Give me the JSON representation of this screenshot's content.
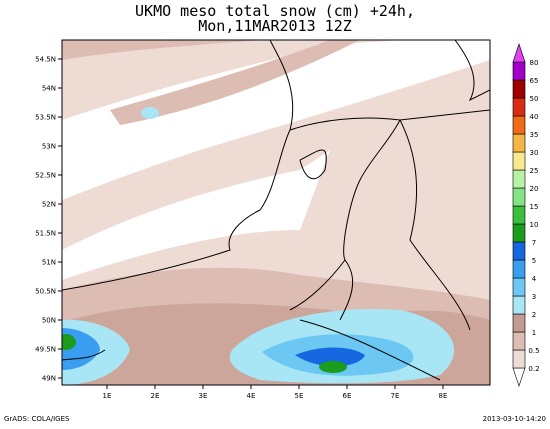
{
  "title": [
    "UKMO meso total snow (cm) +24h,",
    "Mon,11MAR2013 12Z"
  ],
  "map": {
    "x_ticks": [
      {
        "value": 1,
        "label": "1E"
      },
      {
        "value": 2,
        "label": "2E"
      },
      {
        "value": 3,
        "label": "3E"
      },
      {
        "value": 4,
        "label": "4E"
      },
      {
        "value": 5,
        "label": "5E"
      },
      {
        "value": 6,
        "label": "6E"
      },
      {
        "value": 7,
        "label": "7E"
      },
      {
        "value": 8,
        "label": "8E"
      }
    ],
    "y_ticks": [
      {
        "value": 49,
        "label": "49N"
      },
      {
        "value": 49.5,
        "label": "49.5N"
      },
      {
        "value": 50,
        "label": "50N"
      },
      {
        "value": 50.5,
        "label": "50.5N"
      },
      {
        "value": 51,
        "label": "51N"
      },
      {
        "value": 51.5,
        "label": "51.5N"
      },
      {
        "value": 52,
        "label": "52N"
      },
      {
        "value": 52.5,
        "label": "52.5N"
      },
      {
        "value": 53,
        "label": "53N"
      },
      {
        "value": 53.5,
        "label": "53.5N"
      },
      {
        "value": 54,
        "label": "54N"
      },
      {
        "value": 54.5,
        "label": "54.5N"
      }
    ]
  },
  "colorbar": {
    "levels": [
      "0.2",
      "0.5",
      "1",
      "2",
      "3",
      "4",
      "5",
      "7",
      "10",
      "15",
      "20",
      "25",
      "30",
      "35",
      "40",
      "50",
      "65",
      "80"
    ],
    "colors": [
      "#ffffff",
      "#eedbd4",
      "#dcbcb3",
      "#c49b91",
      "#a8e6f5",
      "#6cc7f2",
      "#3a9ef0",
      "#1568e0",
      "#1c9c1c",
      "#3cbf3c",
      "#84e384",
      "#b8f2a6",
      "#f8ea90",
      "#f6b646",
      "#f06a18",
      "#d82a14",
      "#a00000",
      "#a000c8",
      "#e040f0"
    ]
  },
  "footer": {
    "left": "GrADS: COLA/IGES",
    "right": "2013-03-10-14:20"
  }
}
